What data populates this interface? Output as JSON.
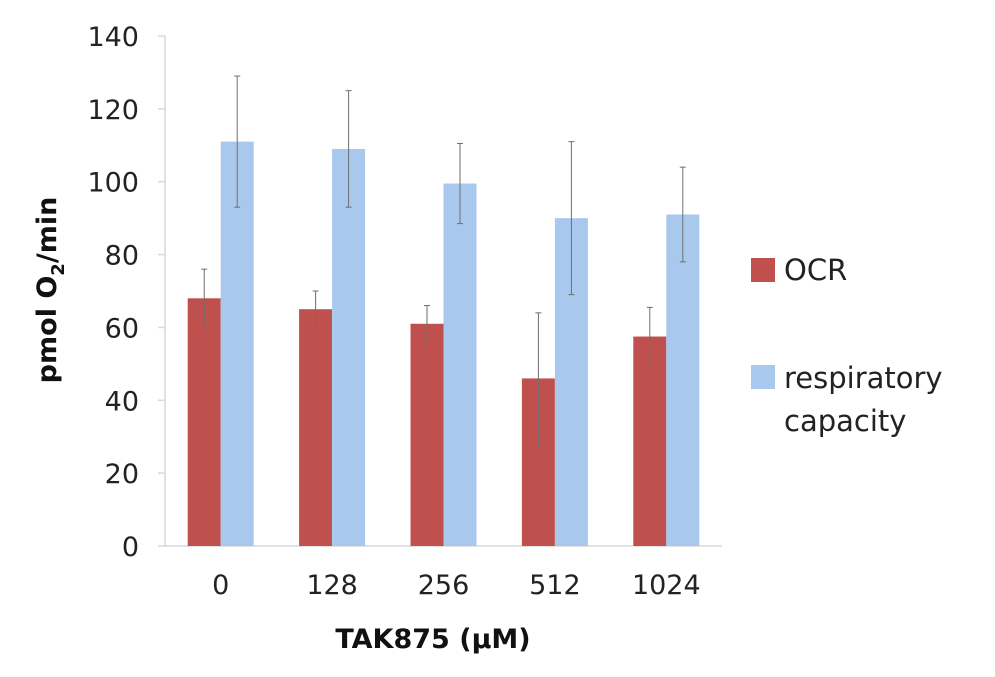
{
  "chart_data": {
    "type": "bar",
    "categories": [
      "0",
      "128",
      "256",
      "512",
      "1024"
    ],
    "series": [
      {
        "name": "OCR",
        "color": "#c0504d",
        "values": [
          68,
          65,
          61,
          46,
          57.5
        ],
        "error": [
          8,
          5,
          5,
          18,
          8
        ]
      },
      {
        "name": "respiratory capacity",
        "legend_lines": [
          "respiratory",
          "capacity"
        ],
        "color": "#a9c8ee",
        "values": [
          111,
          109,
          99.5,
          90,
          91
        ],
        "error": [
          18,
          16,
          11,
          21,
          13
        ]
      }
    ],
    "xlabel": "TAK875 (µM)",
    "ylabel": {
      "before": "pmol O",
      "subscript": "2",
      "after": "/min"
    },
    "ylim": [
      0,
      140
    ],
    "yticks": [
      "0",
      "20",
      "40",
      "60",
      "80",
      "100",
      "120",
      "140"
    ],
    "grid": false,
    "legend_position": "right"
  }
}
